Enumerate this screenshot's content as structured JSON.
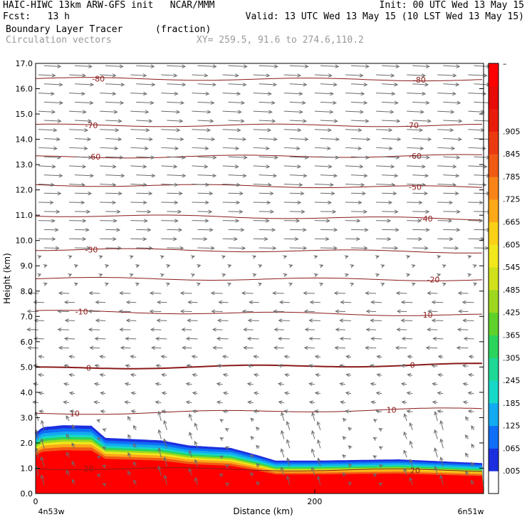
{
  "header": {
    "line1_left": "HAIC-HIWC 13km ARW-GFS init   NCAR/MMM",
    "line1_right": "Init: 00 UTC Wed 13 May 15",
    "line2_left": "Fcst:   13 h",
    "line2_right": "Valid: 13 UTC Wed 13 May 15 (10 LST Wed 13 May 15)",
    "field_name": "Boundary Layer Tracer",
    "field_units": "(fraction)",
    "vector_label": "Circulation vectors",
    "xy_label": "XY= 259.5, 91.6 to 274.6,110.2"
  },
  "chart_data": {
    "type": "heatmap",
    "xlabel": "Distance (km)",
    "ylabel": "Height (km)",
    "xlim": [
      0,
      321
    ],
    "ylim": [
      0,
      17
    ],
    "x_ticks": [
      0,
      200
    ],
    "x_tick_labels": [
      "0",
      "200"
    ],
    "x_end_labels": [
      "4n53w",
      "6n51w"
    ],
    "y_ticks": [
      "0.0",
      "1.0",
      "2.0",
      "3.0",
      "4.0",
      "5.0",
      "6.0",
      "7.0",
      "8.0",
      "9.0",
      "10.0",
      "11.0",
      "12.0",
      "13.0",
      "14.0",
      "15.0",
      "16.0",
      "17.0"
    ],
    "colorbar": {
      "labels": [
        ".005",
        ".065",
        ".125",
        ".185",
        ".245",
        ".305",
        ".365",
        ".425",
        ".485",
        ".545",
        ".605",
        ".665",
        ".725",
        ".785",
        ".845",
        ".905"
      ],
      "top_label": "–",
      "colors": [
        "#ffffff",
        "#1c2fe0",
        "#0f6ef5",
        "#12aaf0",
        "#18d8c8",
        "#1ed896",
        "#2ad45c",
        "#5ed22a",
        "#9ed81e",
        "#d0e01c",
        "#f0e81c",
        "#fcd016",
        "#fca818",
        "#f88418",
        "#f05a14",
        "#ec3a10",
        "#e81c0c",
        "#e60a08",
        "#ff0000"
      ]
    },
    "tracer_top_km": [
      [
        0,
        2.4
      ],
      [
        5,
        2.62
      ],
      [
        20,
        2.7
      ],
      [
        40,
        2.68
      ],
      [
        50,
        2.2
      ],
      [
        90,
        2.1
      ],
      [
        110,
        1.9
      ],
      [
        140,
        1.8
      ],
      [
        160,
        1.5
      ],
      [
        172,
        1.3
      ],
      [
        200,
        1.3
      ],
      [
        260,
        1.35
      ],
      [
        321,
        1.2
      ]
    ],
    "temperature_contours": [
      {
        "label": "-80",
        "y": [
          16.4,
          16.35
        ]
      },
      {
        "label": "-70",
        "y": [
          14.55,
          14.55
        ]
      },
      {
        "label": "-60",
        "y": [
          13.3,
          13.35
        ]
      },
      {
        "label": "-50",
        "y": [
          12.2,
          12.1
        ]
      },
      {
        "label": "-40",
        "y": [
          11.0,
          10.85
        ]
      },
      {
        "label": "-30",
        "y": [
          9.65,
          9.55
        ]
      },
      {
        "label": "-20",
        "y": [
          8.5,
          8.45
        ]
      },
      {
        "label": "-10",
        "y": [
          7.2,
          7.05
        ]
      },
      {
        "label": "0",
        "y": [
          4.95,
          5.1
        ]
      },
      {
        "label": "10",
        "y": [
          3.15,
          3.35
        ]
      },
      {
        "label": "20",
        "y": [
          1.0,
          0.9
        ]
      }
    ],
    "contour_label_positions": [
      {
        "label": "-80",
        "x": [
          45,
          275
        ]
      },
      {
        "label": "-70",
        "x": [
          40,
          270
        ]
      },
      {
        "label": "-60",
        "x": [
          42,
          272
        ]
      },
      {
        "label": "-50",
        "x": [
          272
        ]
      },
      {
        "label": "-40",
        "x": [
          280
        ]
      },
      {
        "label": "-30",
        "x": [
          40
        ]
      },
      {
        "label": "-20",
        "x": [
          285
        ]
      },
      {
        "label": "-10",
        "x": [
          33,
          280
        ]
      },
      {
        "label": "0",
        "x": [
          38,
          270
        ]
      },
      {
        "label": "10",
        "x": [
          28,
          255
        ]
      },
      {
        "label": "20",
        "x": [
          38,
          272
        ]
      }
    ],
    "vector_layers": [
      {
        "z": [
          12.0,
          17.0
        ],
        "u": 1.0,
        "w": -0.05
      },
      {
        "z": [
          9.5,
          12.0
        ],
        "u": 0.9,
        "w": -0.02
      },
      {
        "z": [
          8.0,
          9.5
        ],
        "u": 0.15,
        "w": 0.05
      },
      {
        "z": [
          5.5,
          8.0
        ],
        "u": -0.6,
        "w": 0.02
      },
      {
        "z": [
          3.0,
          5.5
        ],
        "u": -0.3,
        "w": 0.05
      },
      {
        "z": [
          0.0,
          3.0
        ],
        "u": -0.15,
        "w": 0.3
      }
    ]
  }
}
